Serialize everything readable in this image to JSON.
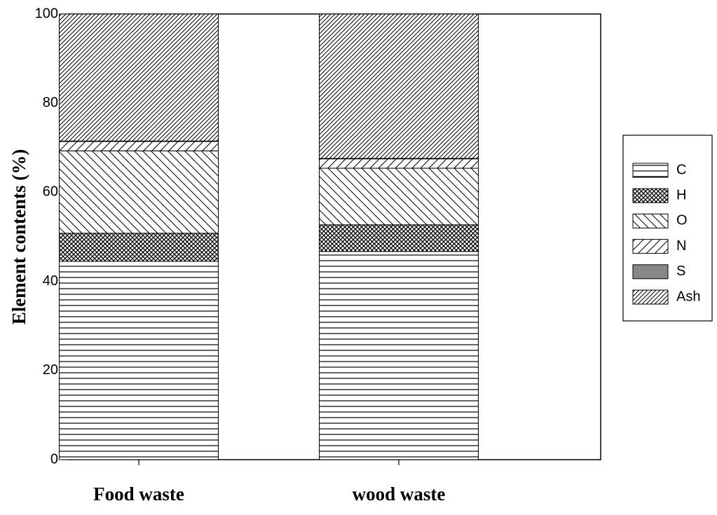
{
  "chart_data": {
    "type": "stacked-bar",
    "y_label": "Element contents (%)",
    "categories": [
      "Food waste",
      "wood waste"
    ],
    "series": [
      {
        "name": "C",
        "pattern": "horizontal",
        "color": "#000000",
        "values": [
          44.5,
          46.7
        ]
      },
      {
        "name": "H",
        "pattern": "crosshatch",
        "color": "#000000",
        "values": [
          6.3,
          6.0
        ]
      },
      {
        "name": "O",
        "pattern": "backslash",
        "color": "#000000",
        "values": [
          18.5,
          12.7
        ]
      },
      {
        "name": "N",
        "pattern": "slash-sparse",
        "color": "#000000",
        "values": [
          2.1,
          2.1
        ]
      },
      {
        "name": "S",
        "pattern": "solid",
        "color": "#888888",
        "values": [
          0.1,
          0.1
        ]
      },
      {
        "name": "Ash",
        "pattern": "slash-dense",
        "color": "#000000",
        "values": [
          28.5,
          32.4
        ]
      }
    ],
    "ylim": [
      0,
      100
    ],
    "yticks": [
      0,
      20,
      40,
      60,
      80,
      100
    ],
    "grid": false,
    "legend": "right"
  }
}
